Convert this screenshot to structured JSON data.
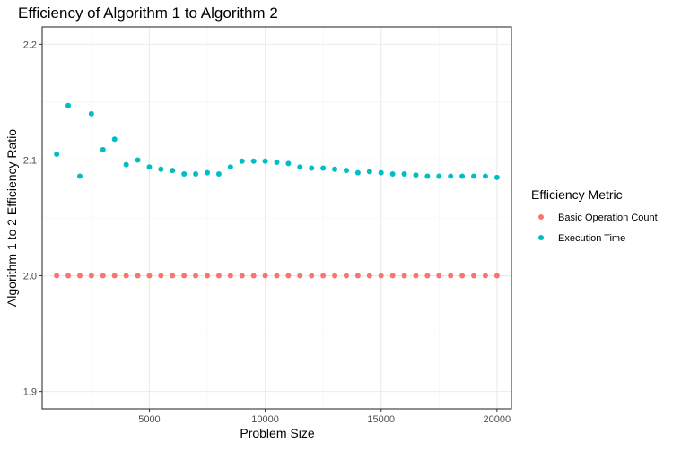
{
  "chart_data": {
    "type": "scatter",
    "title": "Efficiency of Algorithm 1 to Algorithm 2",
    "xlabel": "Problem Size",
    "ylabel": "Algorithm 1 to 2 Efficiency Ratio",
    "xlim": [
      375,
      20625
    ],
    "ylim": [
      1.885,
      2.215
    ],
    "x_ticks": [
      5000,
      10000,
      15000,
      20000
    ],
    "x_tick_labels": [
      "5000",
      "10000",
      "15000",
      "20000"
    ],
    "y_ticks": [
      1.9,
      2.0,
      2.1,
      2.2
    ],
    "y_tick_labels": [
      "1.9",
      "2.0",
      "2.1",
      "2.2"
    ],
    "grid": true,
    "legend": {
      "title": "Efficiency Metric",
      "position": "right"
    },
    "x": [
      1000,
      1500,
      2000,
      2500,
      3000,
      3500,
      4000,
      4500,
      5000,
      5500,
      6000,
      6500,
      7000,
      7500,
      8000,
      8500,
      9000,
      9500,
      10000,
      10500,
      11000,
      11500,
      12000,
      12500,
      13000,
      13500,
      14000,
      14500,
      15000,
      15500,
      16000,
      16500,
      17000,
      17500,
      18000,
      18500,
      19000,
      19500,
      20000
    ],
    "series": [
      {
        "name": "Basic Operation Count",
        "color": "#F8766D",
        "values": [
          2.0,
          2.0,
          2.0,
          2.0,
          2.0,
          2.0,
          2.0,
          2.0,
          2.0,
          2.0,
          2.0,
          2.0,
          2.0,
          2.0,
          2.0,
          2.0,
          2.0,
          2.0,
          2.0,
          2.0,
          2.0,
          2.0,
          2.0,
          2.0,
          2.0,
          2.0,
          2.0,
          2.0,
          2.0,
          2.0,
          2.0,
          2.0,
          2.0,
          2.0,
          2.0,
          2.0,
          2.0,
          2.0,
          2.0
        ]
      },
      {
        "name": "Execution Time",
        "color": "#00BFC4",
        "values": [
          2.105,
          2.147,
          2.086,
          2.14,
          2.109,
          2.118,
          2.096,
          2.1,
          2.094,
          2.092,
          2.091,
          2.088,
          2.088,
          2.089,
          2.088,
          2.094,
          2.099,
          2.099,
          2.099,
          2.098,
          2.097,
          2.094,
          2.093,
          2.093,
          2.092,
          2.091,
          2.089,
          2.09,
          2.089,
          2.088,
          2.088,
          2.087,
          2.086,
          2.086,
          2.086,
          2.086,
          2.086,
          2.086,
          2.085
        ]
      }
    ]
  }
}
